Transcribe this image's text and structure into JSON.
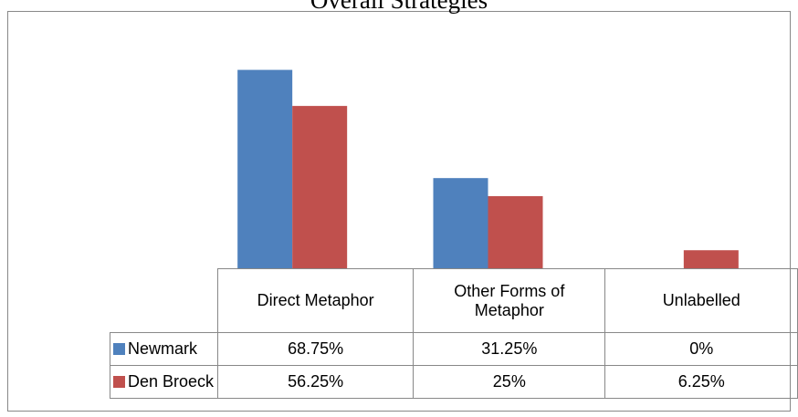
{
  "chart_data": {
    "type": "bar",
    "title": "Overall Strategies",
    "categories": [
      "Direct Metaphor",
      "Other Forms of Metaphor",
      "Unlabelled"
    ],
    "series": [
      {
        "name": "Newmark",
        "color": "#4f81bd",
        "values": [
          68.75,
          31.25,
          0
        ],
        "value_labels": [
          "68.75%",
          "31.25%",
          "0%"
        ]
      },
      {
        "name": "Den Broeck",
        "color": "#c0504d",
        "values": [
          56.25,
          25,
          6.25
        ],
        "value_labels": [
          "56.25%",
          "25%",
          "6.25%"
        ]
      }
    ],
    "ylim": [
      0,
      80
    ]
  }
}
